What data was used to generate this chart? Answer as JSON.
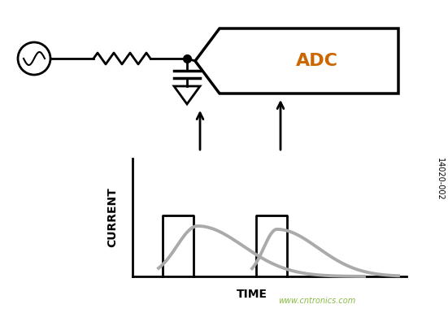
{
  "bg_color": "#ffffff",
  "fig_width": 5.51,
  "fig_height": 3.85,
  "dpi": 100,
  "watermark": "www.cntronics.com",
  "watermark_color": "#88bb44",
  "code_text": "14020-002",
  "time_label": "TIME",
  "current_label": "CURRENT",
  "adc_text": "ADC",
  "adc_color": "#cc6600"
}
